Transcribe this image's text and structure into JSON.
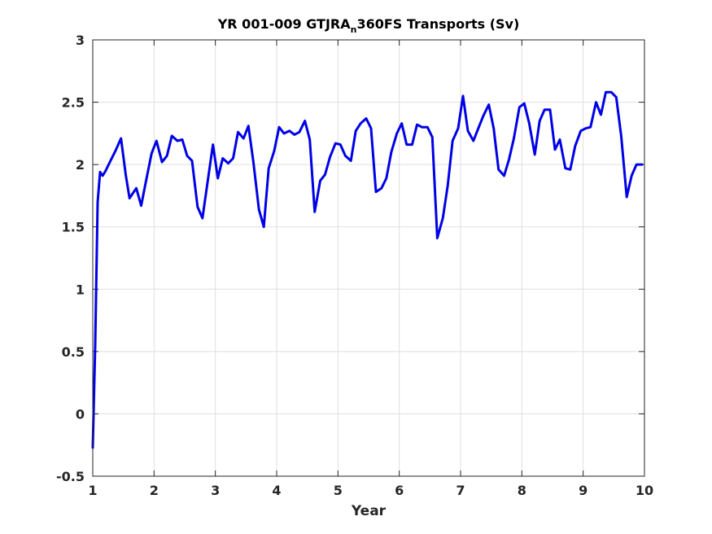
{
  "chart_data": {
    "type": "line",
    "title_main": "YR 001-009 GTJRA",
    "title_sub": "n",
    "title_rest": "360FS Transports (Sv)",
    "xlabel": "Year",
    "ylabel": "",
    "xlim": [
      1,
      10
    ],
    "ylim": [
      -0.5,
      3
    ],
    "xticks": [
      1,
      2,
      3,
      4,
      5,
      6,
      7,
      8,
      9,
      10
    ],
    "yticks": [
      -0.5,
      0,
      0.5,
      1,
      1.5,
      2,
      2.5,
      3
    ],
    "xtick_labels": [
      "1",
      "2",
      "3",
      "4",
      "5",
      "6",
      "7",
      "8",
      "9",
      "10"
    ],
    "ytick_labels": [
      "-0.5",
      "0",
      "0.5",
      "1",
      "1.5",
      "2",
      "2.5",
      "3"
    ],
    "grid": true,
    "series": [
      {
        "color": "#0000e6",
        "x": [
          1.0,
          1.04,
          1.08,
          1.12,
          1.16,
          1.21,
          1.29,
          1.37,
          1.46,
          1.54,
          1.6,
          1.71,
          1.79,
          1.87,
          1.96,
          2.04,
          2.13,
          2.21,
          2.29,
          2.38,
          2.46,
          2.54,
          2.62,
          2.71,
          2.79,
          2.87,
          2.96,
          3.04,
          3.12,
          3.21,
          3.29,
          3.37,
          3.46,
          3.54,
          3.62,
          3.71,
          3.79,
          3.87,
          3.96,
          4.04,
          4.12,
          4.21,
          4.29,
          4.37,
          4.46,
          4.54,
          4.62,
          4.71,
          4.79,
          4.87,
          4.96,
          5.04,
          5.12,
          5.21,
          5.29,
          5.37,
          5.46,
          5.54,
          5.62,
          5.71,
          5.79,
          5.87,
          5.96,
          6.04,
          6.12,
          6.21,
          6.29,
          6.37,
          6.46,
          6.54,
          6.62,
          6.71,
          6.79,
          6.87,
          6.96,
          7.04,
          7.12,
          7.21,
          7.29,
          7.37,
          7.46,
          7.54,
          7.62,
          7.71,
          7.79,
          7.87,
          7.96,
          8.04,
          8.12,
          8.21,
          8.29,
          8.37,
          8.46,
          8.54,
          8.62,
          8.71,
          8.79,
          8.87,
          8.96,
          9.04,
          9.12,
          9.21,
          9.29,
          9.37,
          9.46,
          9.54,
          9.62,
          9.71,
          9.79,
          9.87,
          9.96
        ],
        "y": [
          -0.27,
          0.55,
          1.7,
          1.94,
          1.91,
          1.95,
          2.03,
          2.11,
          2.21,
          1.91,
          1.73,
          1.81,
          1.67,
          1.87,
          2.09,
          2.19,
          2.02,
          2.07,
          2.23,
          2.19,
          2.2,
          2.07,
          2.03,
          1.66,
          1.57,
          1.85,
          2.16,
          1.89,
          2.05,
          2.01,
          2.05,
          2.26,
          2.21,
          2.31,
          2.02,
          1.64,
          1.5,
          1.97,
          2.11,
          2.3,
          2.25,
          2.27,
          2.24,
          2.26,
          2.35,
          2.2,
          1.62,
          1.87,
          1.92,
          2.06,
          2.17,
          2.16,
          2.07,
          2.03,
          2.27,
          2.33,
          2.37,
          2.29,
          1.78,
          1.81,
          1.89,
          2.1,
          2.25,
          2.33,
          2.16,
          2.16,
          2.32,
          2.3,
          2.3,
          2.22,
          1.41,
          1.57,
          1.83,
          2.19,
          2.29,
          2.55,
          2.27,
          2.19,
          2.29,
          2.39,
          2.48,
          2.29,
          1.96,
          1.91,
          2.04,
          2.21,
          2.46,
          2.49,
          2.33,
          2.08,
          2.35,
          2.44,
          2.44,
          2.12,
          2.2,
          1.97,
          1.96,
          2.15,
          2.27,
          2.29,
          2.3,
          2.5,
          2.4,
          2.58,
          2.58,
          2.54,
          2.23,
          1.74,
          1.91,
          2.0,
          2.0
        ]
      }
    ]
  }
}
